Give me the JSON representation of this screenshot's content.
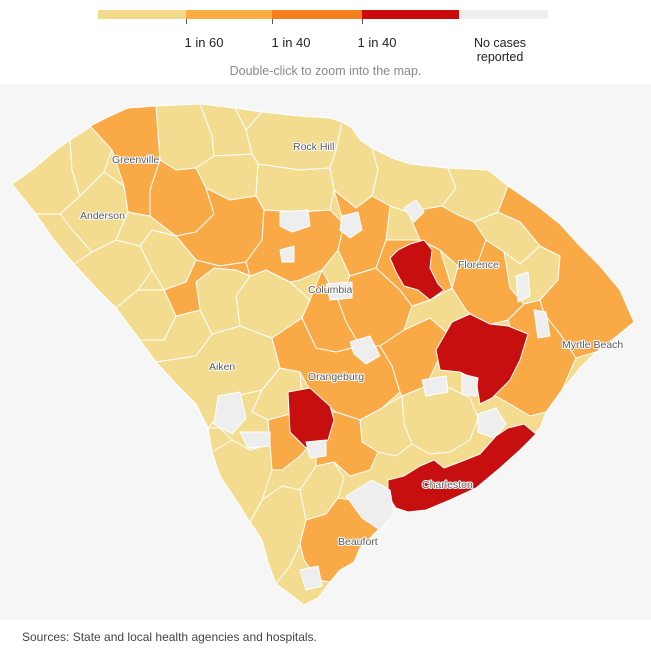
{
  "legend": {
    "labels": [
      "1 in 60",
      "1 in 40",
      "1 in 40"
    ],
    "no_cases_label": "No cases reported",
    "colors": [
      "#f3d98a",
      "#fbac43",
      "#f67f1b",
      "#cc0b0c",
      "#eeeeee"
    ]
  },
  "instruction": "Double-click to zoom into the map.",
  "map": {
    "cities": [
      "Greenville",
      "Rock Hill",
      "Anderson",
      "Florence",
      "Columbia",
      "Myrtle Beach",
      "Aiken",
      "Orangeburg",
      "Beaufort",
      "Charleston"
    ],
    "colors": {
      "light": "#f3dc90",
      "orange": "#f9aa47",
      "red": "#c80f10",
      "none": "#eeeeee",
      "background": "#f6f6f6"
    }
  },
  "source": "Sources: State and local health agencies and hospitals."
}
